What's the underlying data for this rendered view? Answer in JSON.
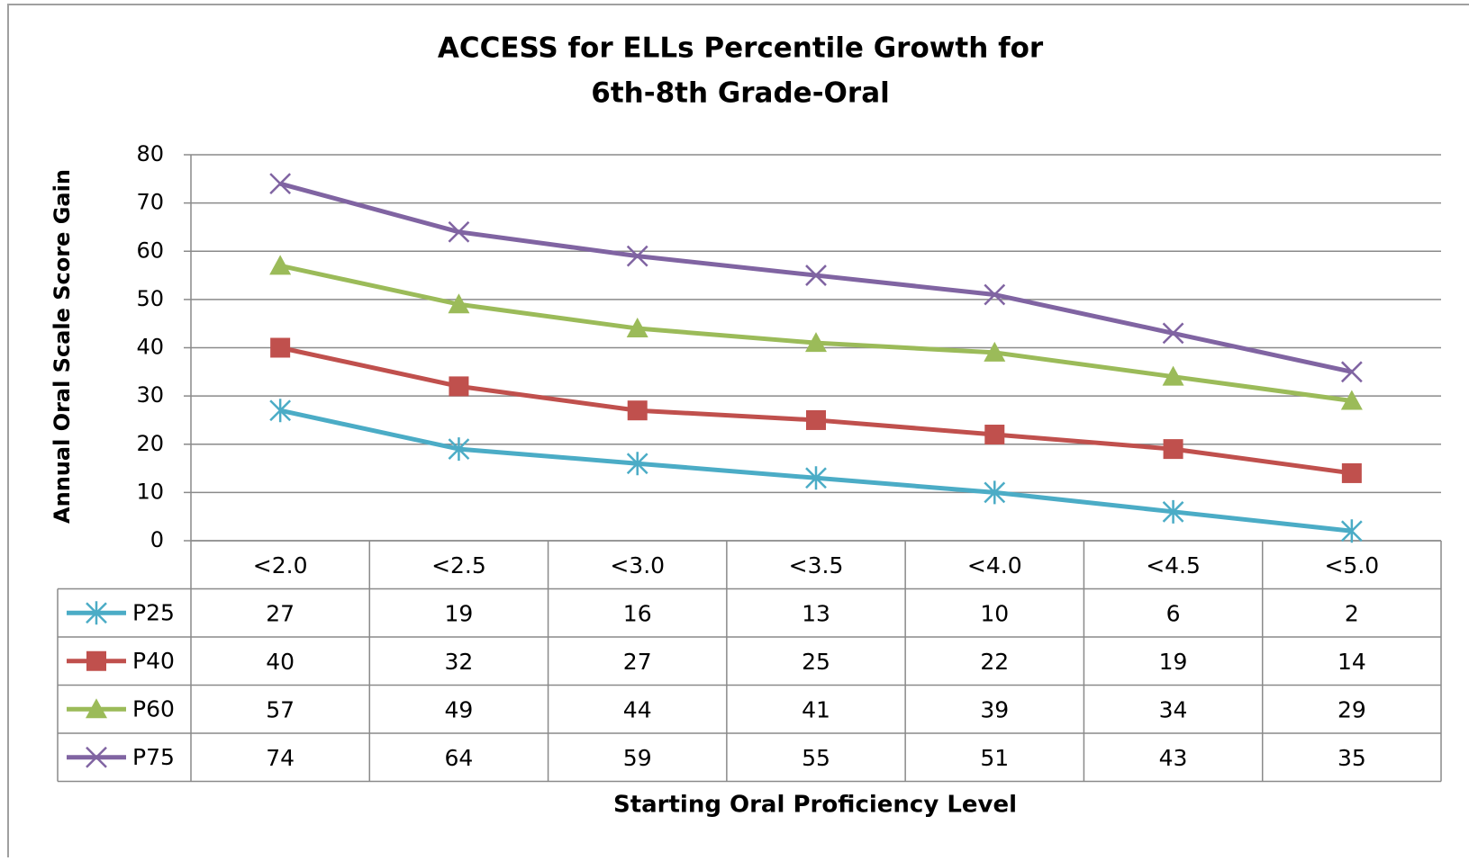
{
  "chart_data": {
    "type": "line",
    "title": [
      "ACCESS  for ELLs Percentile Growth for",
      "6th-8th Grade-Oral"
    ],
    "y_label": "Annual Oral Scale Score Gain",
    "x_label": "Starting Oral Proficiency  Level",
    "categories": [
      "<2.0",
      "<2.5",
      "<3.0",
      "<3.5",
      "<4.0",
      "<4.5",
      "<5.0"
    ],
    "series": [
      {
        "name": "P25",
        "color": "#4bacc6",
        "marker": "star",
        "values": [
          27,
          19,
          16,
          13,
          10,
          6,
          2
        ]
      },
      {
        "name": "P40",
        "color": "#c0504d",
        "marker": "square",
        "values": [
          40,
          32,
          27,
          25,
          22,
          19,
          14
        ]
      },
      {
        "name": "P60",
        "color": "#9bbb59",
        "marker": "triangle",
        "values": [
          57,
          49,
          44,
          41,
          39,
          34,
          29
        ]
      },
      {
        "name": "P75",
        "color": "#8064a2",
        "marker": "x",
        "values": [
          74,
          64,
          59,
          55,
          51,
          43,
          35
        ]
      }
    ],
    "ylim": [
      0,
      80
    ],
    "yticks": [
      0,
      10,
      20,
      30,
      40,
      50,
      60,
      70,
      80
    ],
    "grid": true,
    "data_table": true
  }
}
